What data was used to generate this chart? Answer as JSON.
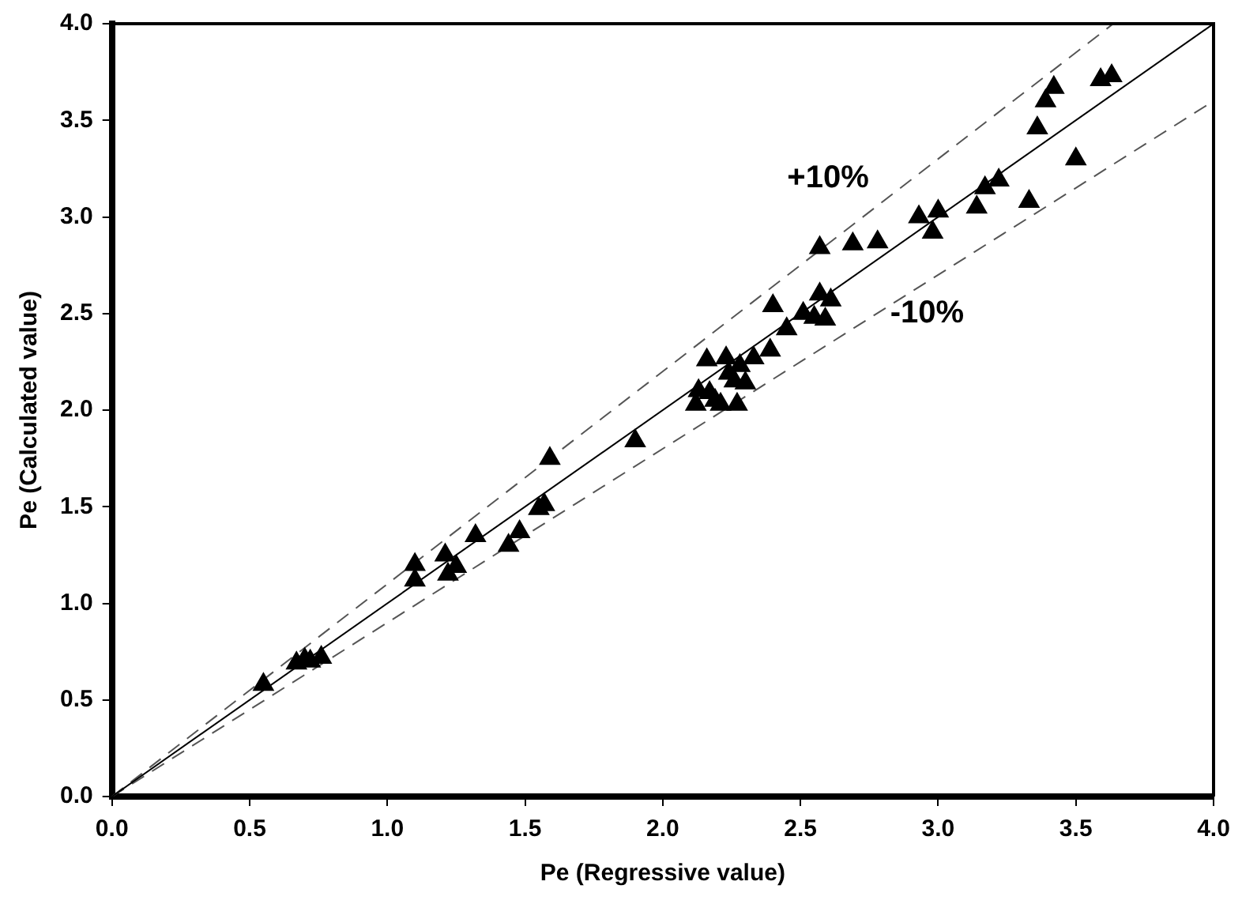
{
  "chart_data": {
    "type": "scatter",
    "xlabel": "Pe (Regressive value)",
    "ylabel": "Pe (Calculated value)",
    "xlim": [
      0,
      4
    ],
    "ylim": [
      0,
      4
    ],
    "xticks": [
      {
        "value": 0,
        "label": "0.0"
      },
      {
        "value": 0.5,
        "label": "0.5"
      },
      {
        "value": 1,
        "label": "1.0"
      },
      {
        "value": 1.5,
        "label": "1.5"
      },
      {
        "value": 2,
        "label": "2.0"
      },
      {
        "value": 2.5,
        "label": "2.5"
      },
      {
        "value": 3,
        "label": "3.0"
      },
      {
        "value": 3.5,
        "label": "3.5"
      },
      {
        "value": 4,
        "label": "4.0"
      }
    ],
    "yticks": [
      {
        "value": 0,
        "label": "0.0"
      },
      {
        "value": 0.5,
        "label": "0.5"
      },
      {
        "value": 1,
        "label": "1.0"
      },
      {
        "value": 1.5,
        "label": "1.5"
      },
      {
        "value": 2,
        "label": "2.0"
      },
      {
        "value": 2.5,
        "label": "2.5"
      },
      {
        "value": 3,
        "label": "3.0"
      },
      {
        "value": 3.5,
        "label": "3.5"
      },
      {
        "value": 4,
        "label": "4.0"
      }
    ],
    "grid": false,
    "legend": false,
    "marker": "triangle",
    "series": [
      {
        "color": "#000000",
        "x": [
          0.55,
          0.67,
          0.7,
          0.72,
          0.76,
          1.1,
          1.1,
          1.21,
          1.22,
          1.25,
          1.32,
          1.44,
          1.48,
          1.55,
          1.57,
          1.59,
          1.9,
          2.12,
          2.13,
          2.16,
          2.17,
          2.19,
          2.21,
          2.23,
          2.24,
          2.26,
          2.27,
          2.28,
          2.3,
          2.33,
          2.39,
          2.4,
          2.45,
          2.51,
          2.55,
          2.57,
          2.57,
          2.59,
          2.61,
          2.69,
          2.78,
          2.93,
          2.98,
          3.0,
          3.14,
          3.17,
          3.22,
          3.33,
          3.36,
          3.39,
          3.42,
          3.5,
          3.59,
          3.63
        ],
        "values": [
          0.58,
          0.69,
          0.71,
          0.7,
          0.72,
          1.2,
          1.12,
          1.25,
          1.15,
          1.19,
          1.35,
          1.3,
          1.37,
          1.49,
          1.51,
          1.75,
          1.84,
          2.03,
          2.1,
          2.26,
          2.09,
          2.05,
          2.03,
          2.27,
          2.19,
          2.15,
          2.03,
          2.23,
          2.14,
          2.27,
          2.31,
          2.54,
          2.42,
          2.5,
          2.48,
          2.84,
          2.6,
          2.47,
          2.57,
          2.86,
          2.87,
          3.0,
          2.92,
          3.03,
          3.05,
          3.15,
          3.19,
          3.08,
          3.46,
          3.6,
          3.67,
          3.3,
          3.71,
          3.73
        ]
      },
      {
        "type": "line",
        "color": "#000000",
        "line_style": "solid",
        "marker": "none",
        "x": [
          0,
          4
        ],
        "values": [
          0,
          4
        ]
      },
      {
        "type": "line",
        "color": "#555555",
        "line_style": "dashed",
        "marker": "none",
        "x": [
          0,
          3.636
        ],
        "values": [
          0,
          4
        ]
      },
      {
        "type": "line",
        "color": "#555555",
        "line_style": "dashed",
        "marker": "none",
        "x": [
          0,
          4
        ],
        "values": [
          0,
          3.6
        ]
      }
    ],
    "annotations": [
      "+10%",
      "-10%"
    ]
  }
}
